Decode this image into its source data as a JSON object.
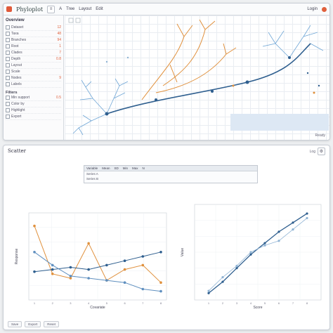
{
  "top_window": {
    "app_title": "Phyloplot",
    "toolbar": {
      "menu": [
        "File",
        "A",
        "Tree",
        "Layout",
        "Edit"
      ],
      "right_label": "Login"
    },
    "left_panel": {
      "header": "Overview",
      "rows": [
        {
          "label": "Dataset",
          "value": "12"
        },
        {
          "label": "Taxa",
          "value": "48"
        },
        {
          "label": "Branches",
          "value": "94"
        },
        {
          "label": "Root",
          "value": "1"
        },
        {
          "label": "Clades",
          "value": "7"
        },
        {
          "label": "Depth",
          "value": "0.8"
        },
        {
          "label": "Layout",
          "value": ""
        },
        {
          "label": "Scale",
          "value": ""
        },
        {
          "label": "Nodes",
          "value": "9"
        },
        {
          "label": "Labels",
          "value": ""
        }
      ],
      "section2": "Filters",
      "rows2": [
        {
          "label": "Min support",
          "value": "0.5"
        },
        {
          "label": "Color by",
          "value": ""
        },
        {
          "label": "Highlight",
          "value": ""
        },
        {
          "label": "Export",
          "value": ""
        }
      ]
    },
    "status": "Ready"
  },
  "bottom_window": {
    "title": "Scatter",
    "tools_label": "Log",
    "table": {
      "header": [
        "Variable",
        "Mean",
        "SD",
        "Min",
        "Max",
        "N"
      ],
      "rows": [
        [
          "Series A",
          "",
          "",
          "",
          "",
          ""
        ],
        [
          "Series B",
          "",
          "",
          "",
          "",
          ""
        ]
      ]
    },
    "footer": [
      "Save",
      "Export",
      "Reset"
    ]
  },
  "chart_data": [
    {
      "type": "line",
      "title": "",
      "xlabel": "Covariate",
      "ylabel": "Response",
      "x": [
        1,
        2,
        3,
        4,
        5,
        6,
        7,
        8
      ],
      "series": [
        {
          "name": "",
          "color": "#e0903c",
          "values": [
            3.4,
            1.2,
            1.0,
            2.6,
            0.9,
            1.4,
            1.6,
            0.8
          ]
        },
        {
          "name": "",
          "color": "#2f5f8f",
          "values": [
            1.3,
            1.4,
            1.5,
            1.4,
            1.6,
            1.8,
            2.0,
            2.2
          ]
        },
        {
          "name": "",
          "color": "#5f8fbf",
          "values": [
            2.2,
            1.6,
            1.1,
            1.0,
            0.9,
            0.8,
            0.5,
            0.4
          ]
        }
      ],
      "ylim": [
        0,
        4
      ]
    },
    {
      "type": "scatter",
      "title": "",
      "xlabel": "Score",
      "ylabel": "Value",
      "series": [
        {
          "name": "",
          "color": "#2f5f8f",
          "x": [
            1,
            2,
            3,
            4,
            5,
            6,
            7,
            8
          ],
          "y": [
            0.3,
            0.8,
            1.4,
            2.0,
            2.5,
            3.0,
            3.4,
            3.8
          ]
        },
        {
          "name": "",
          "color": "#8fb3d4",
          "x": [
            1,
            2,
            3,
            4,
            5,
            6,
            7,
            8
          ],
          "y": [
            0.4,
            1.0,
            1.5,
            2.1,
            2.4,
            2.6,
            3.1,
            3.6
          ]
        }
      ],
      "xlim": [
        0,
        9
      ],
      "ylim": [
        0,
        4.2
      ]
    }
  ]
}
